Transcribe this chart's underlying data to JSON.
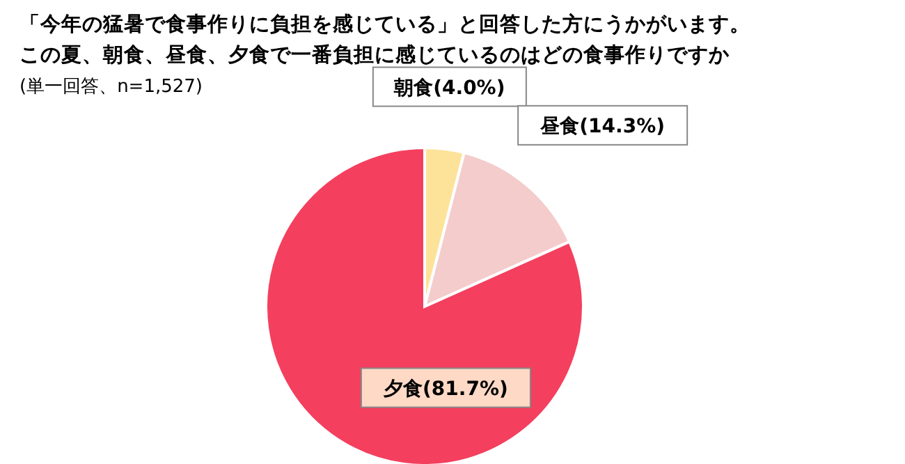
{
  "chart_data": {
    "type": "pie",
    "title": "「今年の猛暑で食事作りに負担を感じている」と回答した方にうかがいます。",
    "subtitle": "この夏、朝食、昼食、夕食で一番負担に感じているのはどの食事作りですか",
    "annotations": [
      "(単一回答、n=1,527)"
    ],
    "categories": [
      "朝食",
      "昼食",
      "夕食"
    ],
    "values": [
      4.0,
      14.3,
      81.7
    ],
    "colors": [
      "#fde39a",
      "#f4cccc",
      "#f43f5e"
    ],
    "value_labels": [
      "(4.0%)",
      "(14.3%)",
      "(81.7%)"
    ]
  }
}
